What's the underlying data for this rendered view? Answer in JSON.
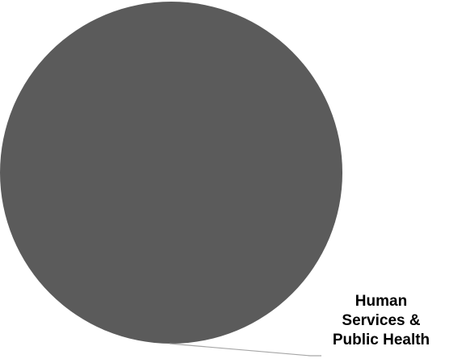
{
  "chart_data": {
    "type": "pie",
    "categories": [
      "Human Services & Public Health"
    ],
    "values": [
      100
    ],
    "slice_colors": [
      "#5b5b5b"
    ],
    "leader_line_color": "#a6a6a6",
    "labels": {
      "slice_0": {
        "line1": "Human",
        "line2": "Services &",
        "line3": "Public Health"
      }
    }
  }
}
